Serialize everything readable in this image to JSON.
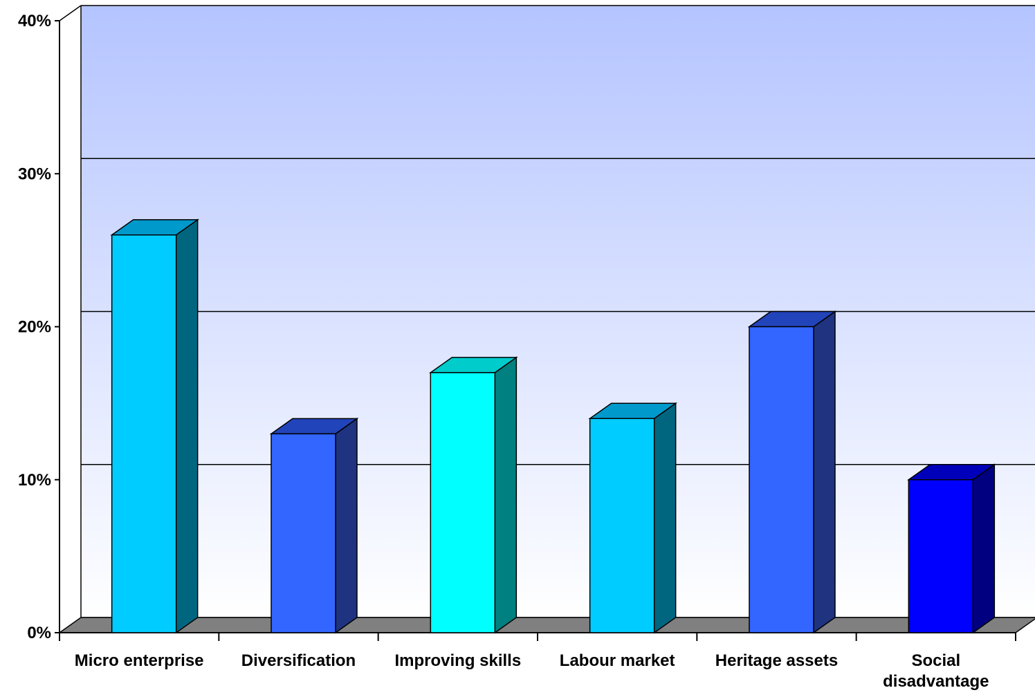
{
  "chart_data": {
    "type": "bar",
    "categories": [
      "Micro enterprise",
      "Diversification",
      "Improving skills",
      "Labour market",
      "Heritage assets",
      "Social disadvantage"
    ],
    "values": [
      26,
      13,
      17,
      14,
      20,
      10
    ],
    "y_unit": "%",
    "ylim": [
      0,
      40
    ],
    "yticks": [
      "0%",
      "10%",
      "20%",
      "30%",
      "40%"
    ],
    "grid": true,
    "legend": "none",
    "title": "",
    "xlabel": "",
    "ylabel": "",
    "colors": {
      "bar_front": [
        "#00CCFF",
        "#3366FF",
        "#00FFFF",
        "#00CCFF",
        "#3366FF",
        "#0000FF"
      ],
      "bar_top": [
        "#0099CC",
        "#2244BB",
        "#00CCCC",
        "#0099CC",
        "#2244BB",
        "#0000BB"
      ],
      "bar_side": [
        "#006680",
        "#1F3380",
        "#008080",
        "#006680",
        "#1F3380",
        "#000080"
      ],
      "floor": "#808080",
      "wall_top": "#B4C4FF",
      "wall_bottom": "#FFFFFF"
    }
  }
}
